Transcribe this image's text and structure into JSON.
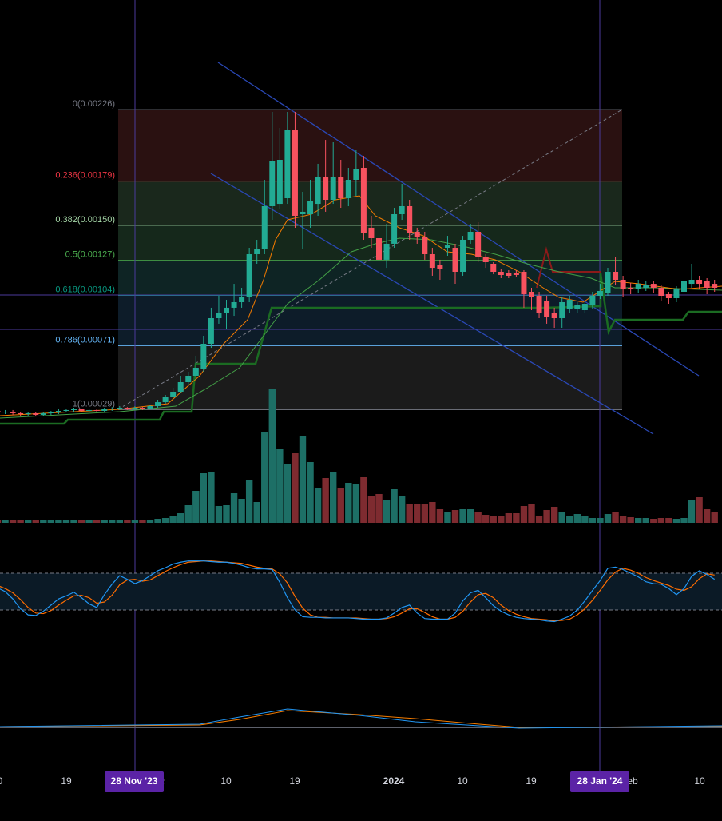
{
  "chart_data": {
    "type": "candlestick",
    "ylim": [
      0.000145,
      0.00298
    ],
    "colors": {
      "up": "#22ab94",
      "down": "#f7525f",
      "volume_up": "#1d6f66",
      "volume_down": "#7e2b30",
      "stoch_k": "#2196f3",
      "stoch_d": "#ff6d00"
    },
    "open": [
      0.0002815,
      0.000271,
      0.000276,
      0.000266,
      0.0002605,
      0.000266,
      0.000255,
      0.000266,
      0.000271,
      0.0002815,
      0.000287,
      0.000292,
      0.0002815,
      0.000287,
      0.0002815,
      0.000292,
      0.000297,
      0.0003025,
      0.000297,
      0.0003025,
      0.000297,
      0.000313,
      0.000339,
      0.000371,
      0.0004075,
      0.0004705,
      0.0005125,
      0.0005545,
      0.0007225,
      0.0008905,
      0.000922,
      0.000959,
      0.0009955,
      0.001027,
      0.0013105,
      0.001342,
      0.0016255,
      0.001641,
      0.001678,
      0.0021295,
      0.001573,
      0.001573,
      0.001641,
      0.0018145,
      0.0016675,
      0.0018145,
      0.001678,
      0.00179875,
      0.0018775,
      0.001484,
      0.0014155,
      0.001274,
      0.001379,
      0.001573,
      0.0016255,
      0.0014575,
      0.001426,
      0.0013105,
      0.001237,
      0.0013525,
      0.0013525,
      0.001195,
      0.001405,
      0.0014575,
      0.0012895,
      0.0012475,
      0.001195,
      0.0011845,
      0.00118975,
      0.001195,
      0.00106375,
      0.0010375,
      0.001006,
      0.000922,
      0.0008905,
      0.0009535,
      0.0009535,
      0.000943,
      0.0009745,
      0.0010375,
      0.0010585,
      0.001195,
      0.0011425,
      0.00109,
      0.0010795,
      0.00109,
      0.001116,
      0.00109,
      0.001048,
      0.00102175,
      0.00106375,
      0.001116,
      0.0011425,
      0.001132,
      0.001116
    ],
    "high": [
      0.000292,
      0.000287,
      0.000287,
      0.000271,
      0.000276,
      0.000271,
      0.000276,
      0.0002815,
      0.000292,
      0.000297,
      0.0003025,
      0.000297,
      0.000297,
      0.000292,
      0.0003025,
      0.000307,
      0.000313,
      0.000307,
      0.000313,
      0.000307,
      0.0003235,
      0.000355,
      0.0003865,
      0.000434,
      0.0005125,
      0.000539,
      0.000644,
      0.000775,
      0.000959,
      0.0010375,
      0.001011,
      0.001116,
      0.00109,
      0.0013525,
      0.001405,
      0.00179875,
      0.002245,
      0.00214,
      0.002245,
      0.002245,
      0.00172,
      0.00179875,
      0.001904,
      0.002061,
      0.0020455,
      0.00193,
      0.0018775,
      0.001993,
      0.001956,
      0.0015625,
      0.001431,
      0.00151,
      0.001615,
      0.0017725,
      0.0016675,
      0.001484,
      0.0014575,
      0.0013525,
      0.001274,
      0.001431,
      0.001379,
      0.001431,
      0.00151,
      0.0015205,
      0.0013105,
      0.001258,
      0.001216,
      0.0012055,
      0.0012055,
      0.0012055,
      0.00109,
      0.00106375,
      0.0010375,
      0.000959,
      0.001027,
      0.0010375,
      0.0009955,
      0.001006,
      0.00106375,
      0.001116,
      0.00122125,
      0.0012895,
      0.00116875,
      0.0011215,
      0.0011425,
      0.001132,
      0.001132,
      0.001111,
      0.00106375,
      0.0011005,
      0.001153,
      0.0012475,
      0.00116875,
      0.001153,
      0.0011425
    ],
    "low": [
      0.0002605,
      0.0002605,
      0.000255,
      0.00025,
      0.00025,
      0.00025,
      0.00025,
      0.000255,
      0.0002605,
      0.000271,
      0.000276,
      0.000271,
      0.000271,
      0.000271,
      0.000276,
      0.0002815,
      0.000287,
      0.000287,
      0.000287,
      0.000287,
      0.000292,
      0.0003025,
      0.000329,
      0.000361,
      0.000397,
      0.0004495,
      0.000486,
      0.000539,
      0.000696,
      0.000854,
      0.000817,
      0.000906,
      0.000959,
      0.0009955,
      0.0012475,
      0.0013105,
      0.001536,
      0.0016045,
      0.001641,
      0.001484,
      0.001342,
      0.001484,
      0.0015625,
      0.001589,
      0.001641,
      0.001615,
      0.0016255,
      0.001694,
      0.001405,
      0.0013525,
      0.0012475,
      0.001221,
      0.0013525,
      0.001536,
      0.001405,
      0.001379,
      0.001274,
      0.001169,
      0.0011425,
      0.0013,
      0.001116,
      0.001169,
      0.001379,
      0.001258,
      0.001221,
      0.001179,
      0.001153,
      0.001153,
      0.00115825,
      0.000959,
      0.000943,
      0.0008905,
      0.000854,
      0.0008275,
      0.0008275,
      0.000922,
      0.000922,
      0.000922,
      0.0009535,
      0.0010165,
      0.0010375,
      0.001111,
      0.001027,
      0.001048,
      0.0010585,
      0.001069,
      0.0010585,
      0.001006,
      0.000985,
      0.0009955,
      0.001027,
      0.00109,
      0.0010795,
      0.001048,
      0.00106375
    ],
    "close": [
      0.000271,
      0.000276,
      0.000266,
      0.0002605,
      0.000266,
      0.000255,
      0.000266,
      0.000271,
      0.0002815,
      0.000287,
      0.000292,
      0.0002815,
      0.000287,
      0.0002815,
      0.000292,
      0.000297,
      0.0003025,
      0.000297,
      0.0003025,
      0.000297,
      0.000313,
      0.000339,
      0.000371,
      0.0004075,
      0.0004705,
      0.0005125,
      0.000565,
      0.0007225,
      0.0008905,
      0.000922,
      0.000959,
      0.0009955,
      0.001027,
      0.0013105,
      0.001342,
      0.0016255,
      0.0019195,
      0.00193,
      0.0021295,
      0.0015625,
      0.001589,
      0.001657,
      0.0018145,
      0.0016675,
      0.0018145,
      0.001678,
      0.00179875,
      0.001867,
      0.001447,
      0.0014155,
      0.001274,
      0.001379,
      0.001573,
      0.0016255,
      0.001447,
      0.001426,
      0.0013105,
      0.001221,
      0.001211,
      0.0013735,
      0.001195,
      0.001405,
      0.0014575,
      0.0012895,
      0.001258,
      0.001195,
      0.001174,
      0.00116875,
      0.001174,
      0.001048,
      0.001027,
      0.000922,
      0.000901,
      0.0008905,
      0.0009955,
      0.001011,
      0.0009745,
      0.000985,
      0.0010375,
      0.001069,
      0.001195,
      0.0011425,
      0.0010795,
      0.0010795,
      0.001116,
      0.001111,
      0.00109,
      0.0010375,
      0.00102175,
      0.0010795,
      0.001132,
      0.0011425,
      0.001116,
      0.00109,
      0.00109
    ],
    "volume": [
      3,
      3,
      4,
      3,
      3,
      4,
      3,
      3,
      4,
      3,
      4,
      3,
      3,
      4,
      3,
      4,
      4,
      3,
      4,
      4,
      4,
      5,
      6,
      8,
      12,
      22,
      40,
      62,
      64,
      21,
      22,
      37,
      30,
      54,
      26,
      114,
      167,
      92,
      74,
      87,
      108,
      76,
      44,
      56,
      64,
      44,
      50,
      49,
      57,
      34,
      36,
      29,
      42,
      34,
      24,
      24,
      24,
      26,
      17,
      14,
      16,
      17,
      17,
      14,
      10,
      8,
      9,
      12,
      12,
      21,
      24,
      9,
      16,
      20,
      14,
      9,
      11,
      8,
      6,
      6,
      11,
      14,
      9,
      7,
      6,
      6,
      5,
      6,
      6,
      5,
      6,
      28,
      32,
      17,
      14
    ],
    "volume_ylim": [
      0,
      200
    ],
    "stoch_k": [
      56,
      50,
      38,
      22,
      12,
      11,
      18,
      28,
      38,
      43,
      49,
      40,
      30,
      24,
      45,
      62,
      76,
      70,
      63,
      68,
      76,
      84,
      89,
      95,
      98,
      100,
      100,
      100,
      99,
      98,
      98,
      96,
      93,
      89,
      87,
      87,
      86,
      65,
      40,
      20,
      9,
      8,
      8,
      7,
      7,
      7,
      7,
      6,
      5,
      5,
      5,
      7,
      15,
      24,
      28,
      15,
      6,
      5,
      5,
      5,
      15,
      35,
      48,
      52,
      40,
      27,
      18,
      12,
      8,
      6,
      5,
      4,
      2,
      1,
      5,
      10,
      20,
      35,
      52,
      68,
      88,
      90,
      86,
      80,
      74,
      66,
      63,
      62,
      55,
      45,
      55,
      75,
      84,
      78,
      70
    ],
    "stoch_d": [
      60,
      55,
      48,
      37,
      24,
      15,
      14,
      19,
      28,
      36,
      43,
      44,
      40,
      31,
      33,
      44,
      61,
      69,
      70,
      67,
      69,
      76,
      83,
      89,
      94,
      98,
      99,
      100,
      100,
      99,
      98,
      97,
      96,
      93,
      90,
      88,
      87,
      79,
      64,
      42,
      23,
      12,
      8,
      8,
      7,
      7,
      7,
      7,
      6,
      5,
      5,
      6,
      9,
      15,
      22,
      22,
      16,
      9,
      5,
      5,
      8,
      18,
      33,
      45,
      47,
      40,
      28,
      19,
      13,
      9,
      6,
      5,
      4,
      2,
      3,
      5,
      12,
      22,
      36,
      52,
      69,
      82,
      88,
      85,
      80,
      73,
      68,
      64,
      60,
      54,
      52,
      58,
      71,
      79,
      77
    ],
    "stoch_ylim": [
      0,
      100
    ],
    "stoch_bands": [
      20,
      80
    ],
    "fib_levels": [
      {
        "label": "0(0.00226)",
        "value": 0.00226,
        "color": "#787b86",
        "fill": "#2c1212"
      },
      {
        "label": "0.236(0.00179)",
        "value": 0.00179,
        "color": "#f23645",
        "fill": "#1b2a1e"
      },
      {
        "label": "0.382(0.00150)",
        "value": 0.0015,
        "color": "#a5d6a7",
        "fill": "#162a1c"
      },
      {
        "label": "0.5(0.00127)",
        "value": 0.00127,
        "color": "#4caf50",
        "fill": "#0f2626"
      },
      {
        "label": "0.618(0.00104)",
        "value": 0.00104,
        "color": "#089981",
        "fill": "#0e1d2b"
      },
      {
        "label": "0.786(0.00071)",
        "value": 0.00071,
        "color": "#64b5f6",
        "fill": "#1c1c1c"
      },
      {
        "label": "1(0.00029)",
        "value": 0.00029,
        "color": "#787b86"
      }
    ],
    "x_labels": [
      "0",
      "19",
      "c",
      "10",
      "19",
      "2024",
      "10",
      "19",
      "eb",
      "10"
    ],
    "markers": [
      "28 Nov '23",
      "28 Jan '24"
    ]
  }
}
